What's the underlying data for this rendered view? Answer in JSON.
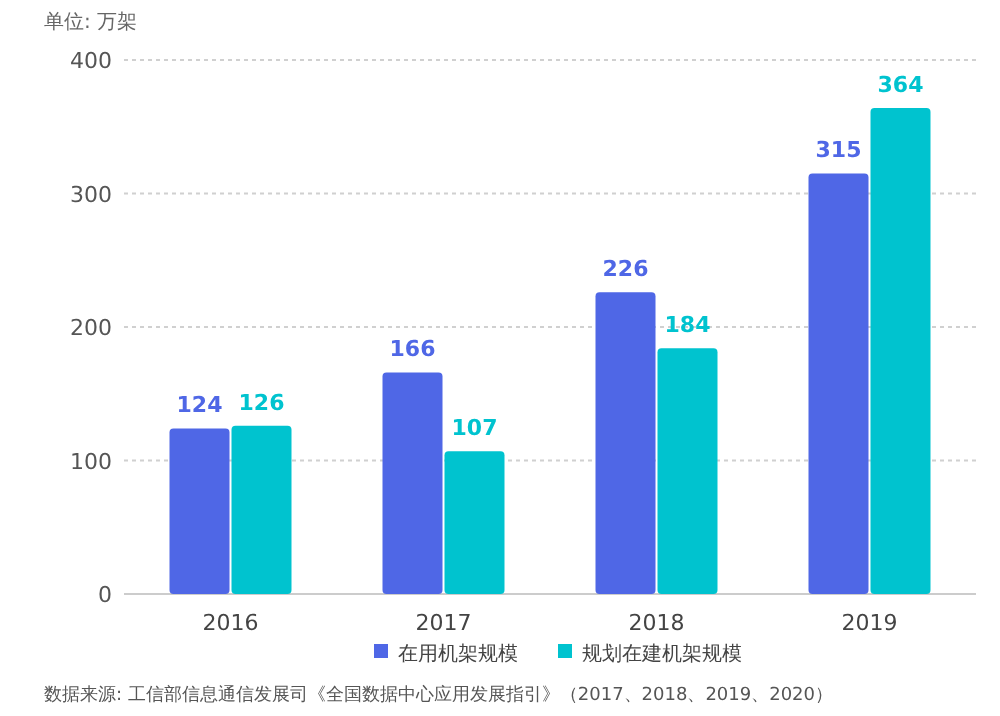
{
  "chart_data": {
    "type": "bar",
    "ylabel": "单位: 万架",
    "categories": [
      "2016",
      "2017",
      "2018",
      "2019"
    ],
    "series": [
      {
        "name": "在用机架规模",
        "color": "#4f67e6",
        "values": [
          124,
          166,
          226,
          315
        ]
      },
      {
        "name": "规划在建机架规模",
        "color": "#00c3cf",
        "values": [
          126,
          107,
          184,
          364
        ]
      }
    ],
    "data_labels": true,
    "ylim": [
      0,
      400
    ],
    "yticks": [
      0,
      100,
      200,
      300,
      400
    ],
    "grid": "y",
    "legend": "bottom",
    "annotations": [
      "数据来源: 工信部信息通信发展司《全国数据中心应用发展指引》（2017、2018、2019、2020）"
    ]
  }
}
